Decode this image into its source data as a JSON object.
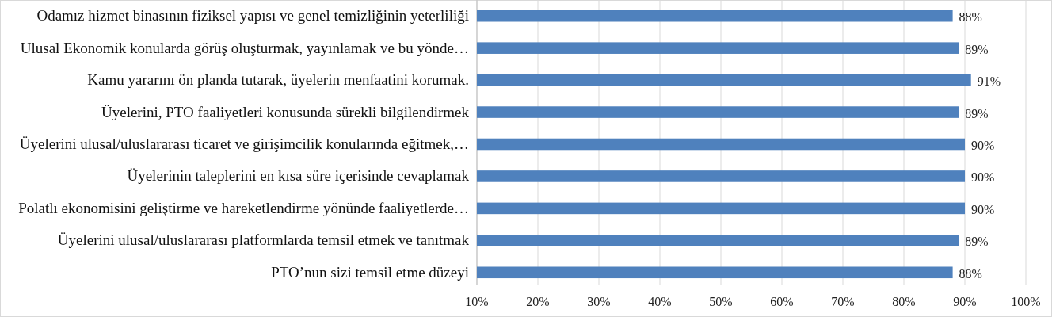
{
  "chart_data": {
    "type": "bar",
    "orientation": "horizontal",
    "categories": [
      "Odamız hizmet binasının fiziksel yapısı ve genel temizliğinin yeterliliği",
      "Ulusal Ekonomik konularda görüş oluşturmak, yayınlamak ve bu yönde…",
      "Kamu yararını ön planda tutarak, üyelerin menfaatini korumak.",
      "Üyelerini, PTO faaliyetleri konusunda sürekli bilgilendirmek",
      "Üyelerini ulusal/uluslararası ticaret ve girişimcilik konularında eğitmek,…",
      "Üyelerinin taleplerini en kısa süre içerisinde cevaplamak",
      "Polatlı ekonomisini geliştirme ve hareketlendirme yönünde faaliyetlerde…",
      "Üyelerini ulusal/uluslararası platformlarda temsil etmek ve tanıtmak",
      "PTO’nun sizi temsil etme düzeyi"
    ],
    "values": [
      88,
      89,
      91,
      89,
      90,
      90,
      90,
      89,
      88
    ],
    "color": "#4f81bd",
    "value_labels": [
      "88%",
      "89%",
      "91%",
      "89%",
      "90%",
      "90%",
      "90%",
      "89%",
      "88%"
    ],
    "xlim": [
      10,
      100
    ],
    "xticks": [
      {
        "value": 10,
        "label": "10%"
      },
      {
        "value": 20,
        "label": "20%"
      },
      {
        "value": 30,
        "label": "30%"
      },
      {
        "value": 40,
        "label": "40%"
      },
      {
        "value": 50,
        "label": "50%"
      },
      {
        "value": 60,
        "label": "60%"
      },
      {
        "value": 70,
        "label": "70%"
      },
      {
        "value": 80,
        "label": "80%"
      },
      {
        "value": 90,
        "label": "90%"
      },
      {
        "value": 100,
        "label": "100%"
      }
    ],
    "grid": "x"
  }
}
